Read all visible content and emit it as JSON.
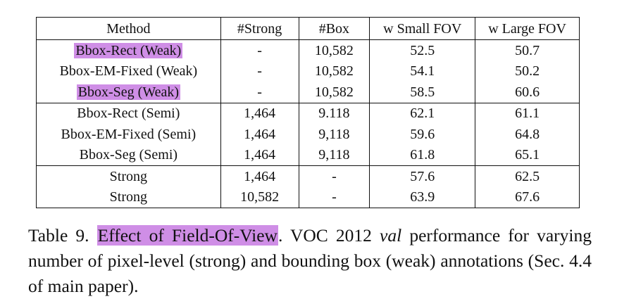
{
  "table": {
    "headers": [
      "Method",
      "#Strong",
      "#Box",
      "w Small FOV",
      "w Large FOV"
    ],
    "groups": [
      [
        {
          "method": "Bbox-Rect (Weak)",
          "highlighted": true,
          "strong": "-",
          "box": "10,582",
          "small": "52.5",
          "large": "50.7"
        },
        {
          "method": "Bbox-EM-Fixed (Weak)",
          "highlighted": false,
          "strong": "-",
          "box": "10,582",
          "small": "54.1",
          "large": "50.2"
        },
        {
          "method": "Bbox-Seg (Weak)",
          "highlighted": true,
          "strong": "-",
          "box": "10,582",
          "small": "58.5",
          "large": "60.6"
        }
      ],
      [
        {
          "method": "Bbox-Rect (Semi)",
          "highlighted": false,
          "strong": "1,464",
          "box": "9.118",
          "small": "62.1",
          "large": "61.1"
        },
        {
          "method": "Bbox-EM-Fixed (Semi)",
          "highlighted": false,
          "strong": "1,464",
          "box": "9,118",
          "small": "59.6",
          "large": "64.8"
        },
        {
          "method": "Bbox-Seg (Semi)",
          "highlighted": false,
          "strong": "1,464",
          "box": "9,118",
          "small": "61.8",
          "large": "65.1"
        }
      ],
      [
        {
          "method": "Strong",
          "highlighted": false,
          "strong": "1,464",
          "box": "-",
          "small": "57.6",
          "large": "62.5"
        },
        {
          "method": "Strong",
          "highlighted": false,
          "strong": "10,582",
          "box": "-",
          "small": "63.9",
          "large": "67.6"
        }
      ]
    ]
  },
  "caption": {
    "label": "Table 9.",
    "highlight": "Effect of Field-Of-View",
    "text_a": ". VOC 2012 ",
    "italic": "val",
    "text_b": " performance for varying number of pixel-level (strong) and bounding box (weak) annotations (Sec. 4.4 of main paper)."
  },
  "colors": {
    "highlight": "#cf8ee6",
    "text": "#111111"
  }
}
